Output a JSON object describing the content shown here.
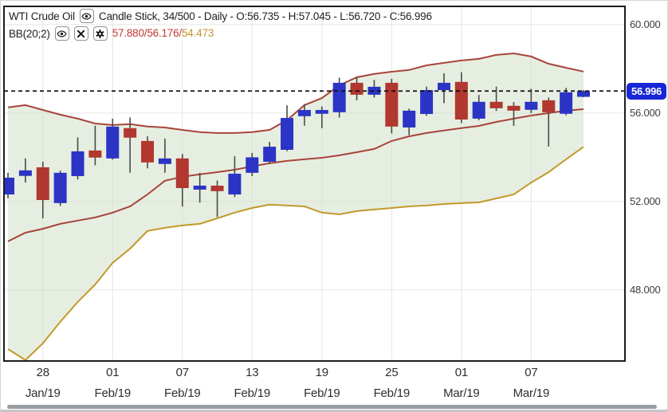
{
  "legend": {
    "symbol": "WTI Crude Oil",
    "series_info": "Candle Stick, 34/500 - Daily - O:56.735 - H:57.045 - L:56.720 - C:56.996",
    "indicator": {
      "label": "BB(20;2)",
      "values_red": "57.880/56.176/",
      "values_gold": "54.473"
    },
    "icons": {
      "symbol_eye": "eye-icon",
      "indicator_eye": "eye-icon",
      "indicator_close": "x-icon",
      "indicator_gear": "gear-icon"
    }
  },
  "y_axis": {
    "ticks": [
      {
        "price": 60,
        "label": "60.000"
      },
      {
        "price": 56,
        "label": "56.000"
      },
      {
        "price": 52,
        "label": "52.000"
      },
      {
        "price": 48,
        "label": "48.000"
      }
    ],
    "last_price": 56.996,
    "last_price_label": "56.996"
  },
  "x_axis": {
    "ticks": [
      {
        "day": "28",
        "month": "Jan/19",
        "candle_index": 2
      },
      {
        "day": "01",
        "month": "Feb/19",
        "candle_index": 6
      },
      {
        "day": "07",
        "month": "Feb/19",
        "candle_index": 10
      },
      {
        "day": "13",
        "month": "Feb/19",
        "candle_index": 14
      },
      {
        "day": "19",
        "month": "Feb/19",
        "candle_index": 18
      },
      {
        "day": "25",
        "month": "Feb/19",
        "candle_index": 22
      },
      {
        "day": "01",
        "month": "Mar/19",
        "candle_index": 26
      },
      {
        "day": "07",
        "month": "Mar/19",
        "candle_index": 30
      }
    ]
  },
  "chart_data": {
    "type": "candlestick",
    "title": "WTI Crude Oil - Candle Stick - Daily with Bollinger Bands BB(20;2)",
    "visible_candles": "34/500",
    "interval": "Daily",
    "last_candle": {
      "open": 56.735,
      "high": 57.045,
      "low": 56.72,
      "close": 56.996
    },
    "price_range": [
      44.79,
      60.79
    ],
    "candle_format": [
      "open",
      "high",
      "low",
      "close"
    ],
    "candles": [
      [
        52.32,
        53.3,
        52.15,
        53.08
      ],
      [
        53.16,
        53.95,
        52.86,
        53.41
      ],
      [
        53.55,
        53.8,
        51.24,
        52.07
      ],
      [
        51.93,
        53.4,
        51.8,
        53.3
      ],
      [
        53.15,
        54.9,
        53.0,
        54.27
      ],
      [
        54.31,
        55.43,
        53.64,
        53.99
      ],
      [
        53.95,
        55.75,
        53.9,
        55.39
      ],
      [
        55.32,
        55.8,
        53.3,
        54.89
      ],
      [
        54.74,
        54.95,
        53.5,
        53.77
      ],
      [
        53.7,
        54.85,
        53.3,
        53.95
      ],
      [
        53.95,
        54.15,
        51.77,
        52.61
      ],
      [
        52.54,
        53.3,
        51.95,
        52.72
      ],
      [
        52.72,
        52.95,
        51.3,
        52.47
      ],
      [
        52.32,
        54.05,
        52.2,
        53.26
      ],
      [
        53.3,
        54.2,
        53.15,
        54.0
      ],
      [
        53.8,
        54.7,
        53.7,
        54.48
      ],
      [
        54.34,
        56.35,
        54.28,
        55.78
      ],
      [
        55.86,
        56.4,
        55.43,
        56.14
      ],
      [
        55.97,
        56.3,
        55.32,
        56.14
      ],
      [
        56.04,
        57.6,
        55.8,
        57.37
      ],
      [
        57.37,
        57.64,
        56.58,
        56.83
      ],
      [
        56.83,
        57.5,
        56.7,
        57.19
      ],
      [
        57.37,
        57.55,
        55.08,
        55.39
      ],
      [
        55.35,
        56.2,
        55.0,
        56.11
      ],
      [
        55.96,
        57.2,
        55.88,
        57.04
      ],
      [
        57.04,
        57.8,
        56.45,
        57.37
      ],
      [
        57.41,
        57.85,
        55.55,
        55.71
      ],
      [
        55.75,
        56.82,
        55.68,
        56.51
      ],
      [
        56.51,
        57.2,
        56.1,
        56.22
      ],
      [
        56.33,
        56.5,
        55.42,
        56.11
      ],
      [
        56.15,
        57.1,
        56.0,
        56.51
      ],
      [
        56.58,
        56.7,
        54.49,
        56.04
      ],
      [
        55.97,
        57.14,
        55.9,
        56.94
      ],
      [
        56.735,
        57.045,
        56.72,
        56.996
      ]
    ],
    "bb_upper": [
      56.26,
      56.36,
      56.14,
      55.93,
      55.75,
      55.53,
      55.46,
      55.5,
      55.39,
      55.35,
      55.24,
      55.14,
      55.1,
      55.1,
      55.14,
      55.24,
      55.68,
      56.36,
      56.68,
      57.26,
      57.62,
      57.77,
      57.87,
      57.95,
      58.16,
      58.27,
      58.38,
      58.45,
      58.63,
      58.7,
      58.56,
      58.23,
      58.05,
      57.88
    ],
    "bb_middle": [
      50.2,
      50.59,
      50.77,
      50.99,
      51.14,
      51.28,
      51.5,
      51.78,
      52.32,
      52.94,
      53.12,
      53.23,
      53.33,
      53.44,
      53.59,
      53.73,
      53.84,
      53.91,
      53.98,
      54.09,
      54.23,
      54.38,
      54.74,
      54.95,
      55.1,
      55.21,
      55.32,
      55.42,
      55.6,
      55.75,
      55.89,
      56.0,
      56.11,
      56.176
    ],
    "bb_lower": [
      45.33,
      44.83,
      45.59,
      46.56,
      47.46,
      48.25,
      49.23,
      49.87,
      50.67,
      50.81,
      50.92,
      50.99,
      51.24,
      51.5,
      51.71,
      51.86,
      51.82,
      51.78,
      51.5,
      51.42,
      51.57,
      51.64,
      51.71,
      51.78,
      51.82,
      51.89,
      51.93,
      51.96,
      52.14,
      52.32,
      52.86,
      53.33,
      53.91,
      54.473
    ]
  },
  "colors": {
    "bull": "#2b34c4",
    "bear": "#b1372f",
    "wick": "#474b47",
    "band_fill": "rgba(205,221,195,0.5)",
    "band_line": "#a8443b",
    "band_lower_line": "#c2992b",
    "grid": "#e4e6e3",
    "frame": "#1c1c1c",
    "dotted": "#111111",
    "badge_bg": "#1726d6",
    "badge_text": "#ffffff",
    "values_red": "#c03a30",
    "values_gold": "#c2932e",
    "scrollbar": "#989ea2"
  }
}
